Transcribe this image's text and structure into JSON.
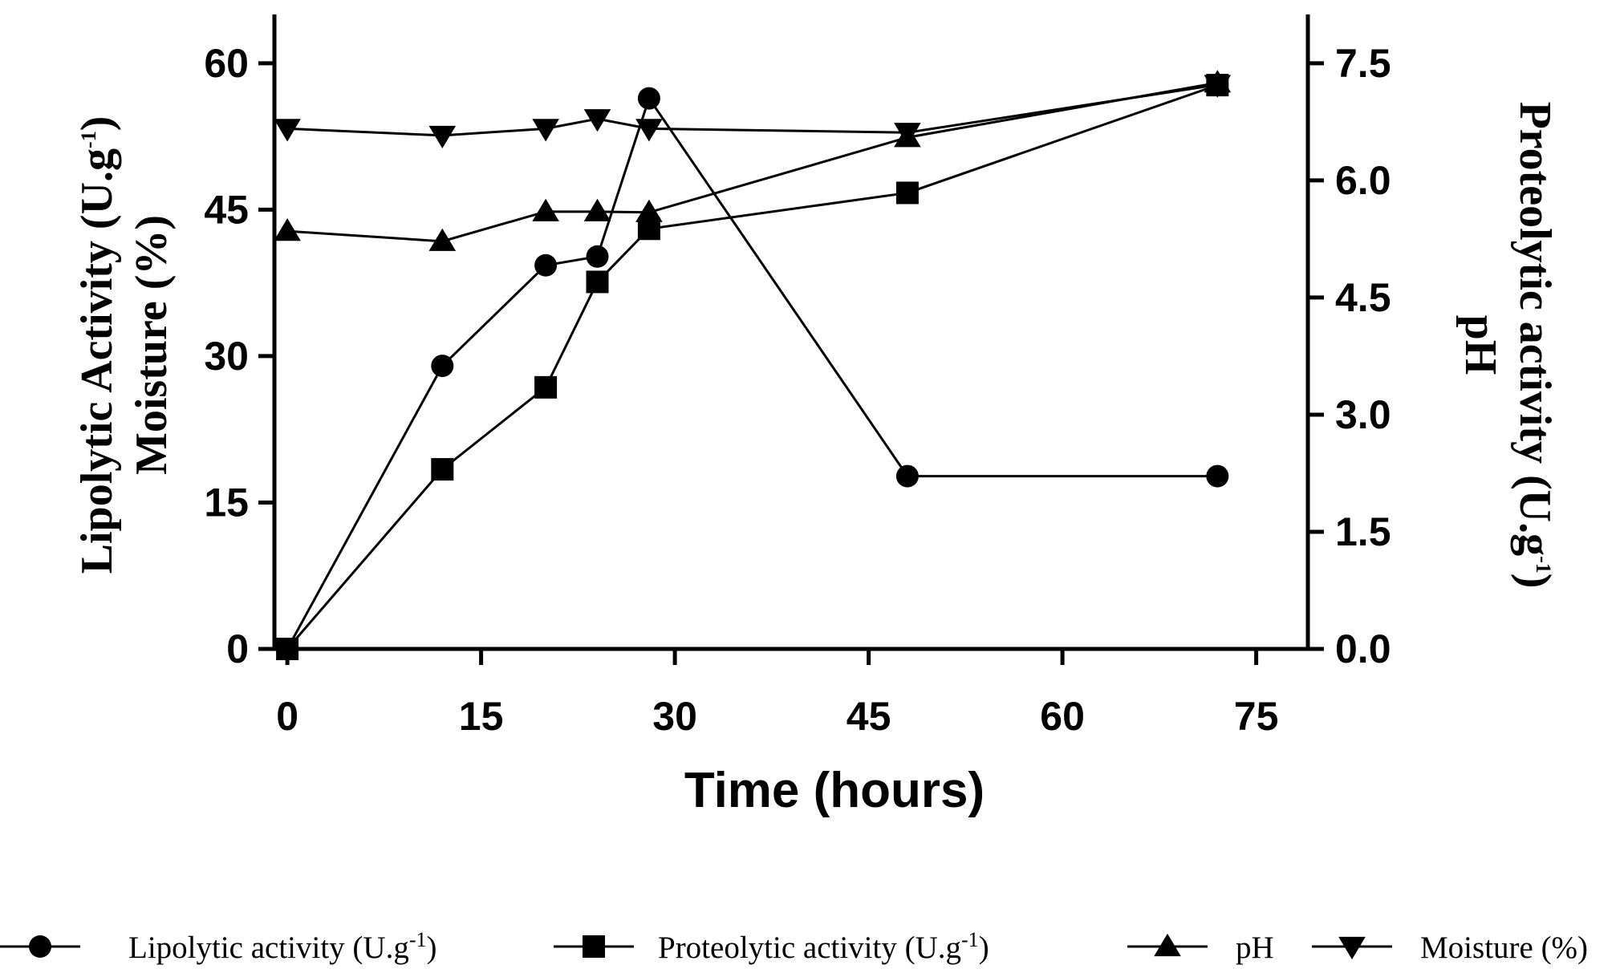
{
  "chart_data": {
    "type": "line",
    "xlabel": "Time (hours)",
    "ylabel_left": {
      "line1_main": "Lipolytic Activity (U.g",
      "line1_sup": "-1",
      "line1_end": ")",
      "line2": "Moisture (%)"
    },
    "ylabel_right": {
      "line1_main": "Proteolytic activity (U.g",
      "line1_sup": "-1",
      "line1_end": ")",
      "line2": "pH"
    },
    "xlim": [
      -1,
      79
    ],
    "ylim_left": [
      0,
      65
    ],
    "ylim_right": [
      0,
      8.125
    ],
    "xticks": [
      "0",
      "15",
      "30",
      "45",
      "60",
      "75"
    ],
    "xtick_values": [
      0,
      15,
      30,
      45,
      60,
      75
    ],
    "yticks_left": [
      "0",
      "15",
      "30",
      "45",
      "60"
    ],
    "ytick_values_left": [
      0,
      15,
      30,
      45,
      60
    ],
    "yticks_right": [
      "0.0",
      "1.5",
      "3.0",
      "4.5",
      "6.0",
      "7.5"
    ],
    "ytick_values_right": [
      0,
      1.5,
      3.0,
      4.5,
      6.0,
      7.5
    ],
    "series": [
      {
        "name": "Lipolytic activity (U.g-1)",
        "legend_main": "Lipolytic activity (U.g",
        "legend_sup": "-1",
        "legend_end": ")",
        "marker": "circle",
        "axis": "left",
        "x": [
          0,
          12,
          20,
          24,
          28,
          48,
          72
        ],
        "y": [
          0,
          29,
          39.3,
          40.2,
          56.4,
          17.7,
          17.7
        ]
      },
      {
        "name": "Proteolytic activity (U.g-1)",
        "legend_main": "Proteolytic activity (U.g",
        "legend_sup": "-1",
        "legend_end": ")",
        "marker": "square",
        "axis": "right",
        "x": [
          0,
          12,
          20,
          24,
          28,
          48,
          72
        ],
        "y": [
          0,
          2.3,
          3.35,
          4.7,
          5.38,
          5.84,
          7.22
        ]
      },
      {
        "name": "pH",
        "legend_main": "pH",
        "legend_sup": "",
        "legend_end": "",
        "marker": "triangle-up",
        "axis": "right",
        "x": [
          0,
          12,
          20,
          24,
          28,
          48,
          72
        ],
        "y": [
          5.35,
          5.22,
          5.6,
          5.6,
          5.59,
          6.55,
          7.25
        ]
      },
      {
        "name": "Moisture (%)",
        "legend_main": "Moisture (%)",
        "legend_sup": "",
        "legend_end": "",
        "marker": "triangle-down",
        "axis": "left",
        "x": [
          0,
          12,
          20,
          24,
          28,
          48,
          72
        ],
        "y": [
          53.3,
          52.6,
          53.3,
          54.3,
          53.3,
          52.9,
          57.8
        ]
      }
    ]
  }
}
